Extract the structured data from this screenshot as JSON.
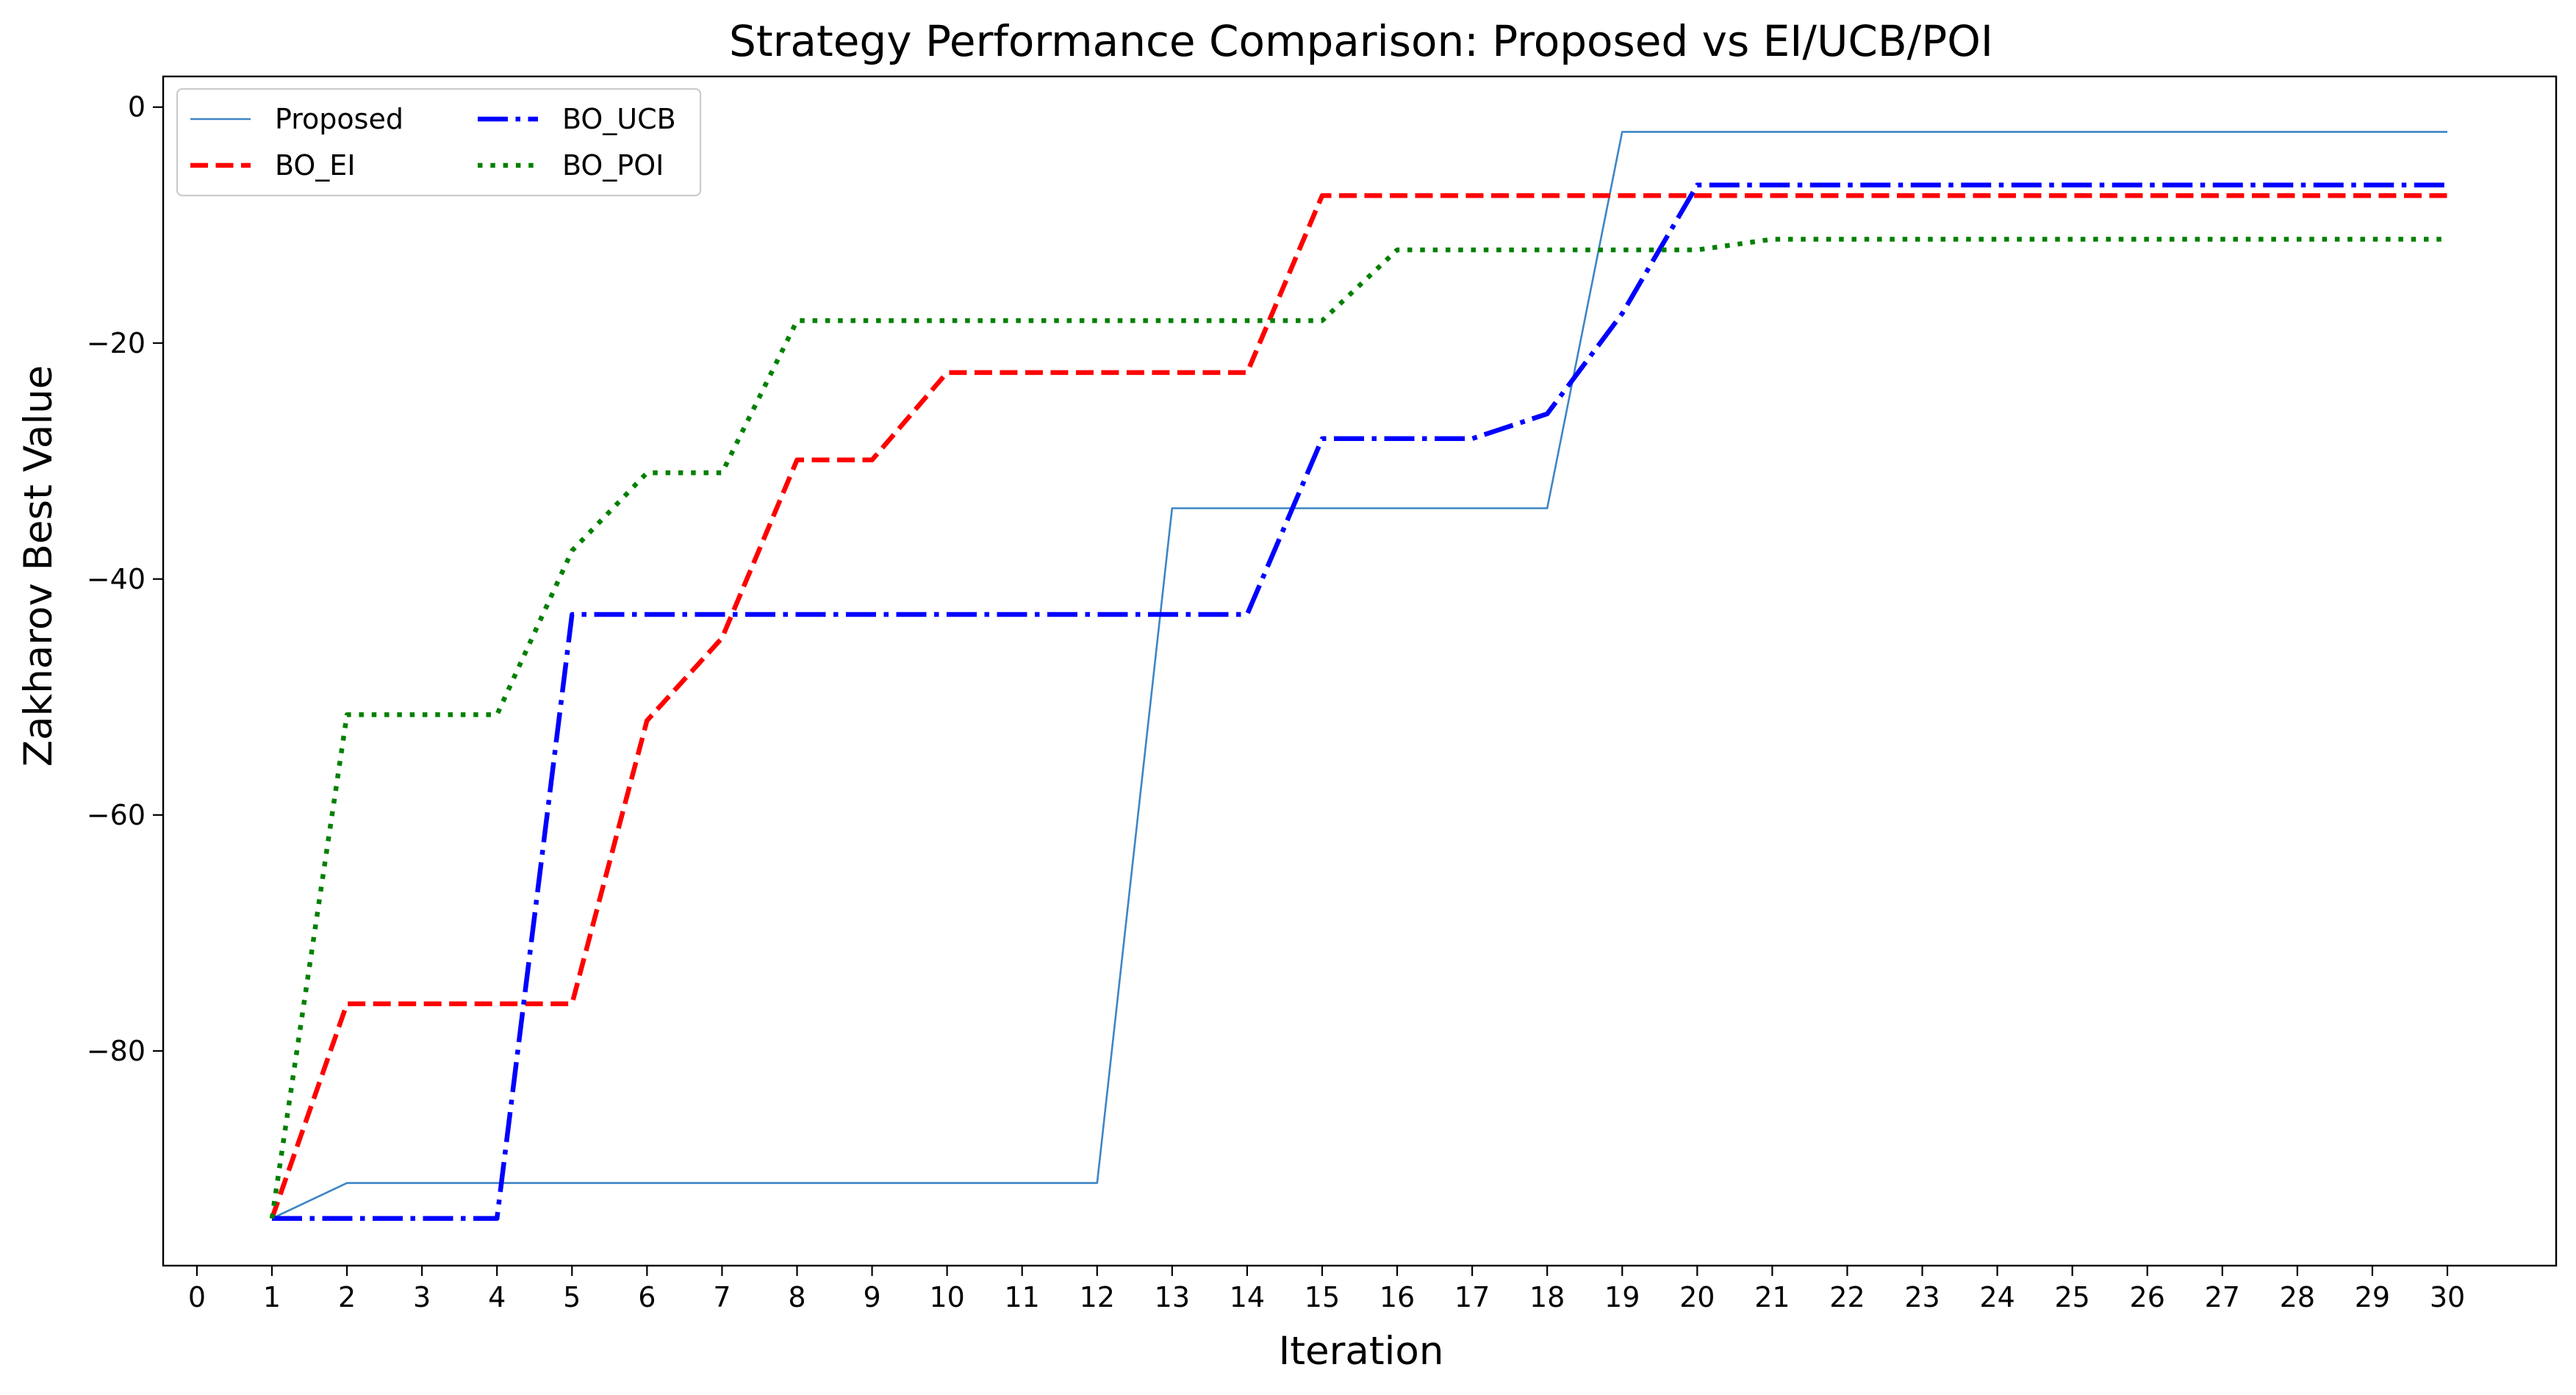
{
  "chart_data": {
    "type": "line",
    "title": "Strategy Performance Comparison: Proposed vs EI/UCB/POI",
    "xlabel": "Iteration",
    "ylabel": "Zakharov Best Value",
    "xlim": [
      -0.45,
      31.45
    ],
    "ylim": [
      -98.2,
      2.6
    ],
    "xticks": [
      0,
      1,
      2,
      3,
      4,
      5,
      6,
      7,
      8,
      9,
      10,
      11,
      12,
      13,
      14,
      15,
      16,
      17,
      18,
      19,
      20,
      21,
      22,
      23,
      24,
      25,
      26,
      27,
      28,
      29,
      30
    ],
    "yticks": [
      -80,
      -60,
      -40,
      -20,
      0
    ],
    "legend_loc": "upper-left",
    "x": [
      1,
      2,
      3,
      4,
      5,
      6,
      7,
      8,
      9,
      10,
      11,
      12,
      13,
      14,
      15,
      16,
      17,
      18,
      19,
      20,
      21,
      22,
      23,
      24,
      25,
      26,
      27,
      28,
      29,
      30
    ],
    "series": [
      {
        "name": "Proposed",
        "color": "#3d85c6",
        "style": "solid",
        "values": [
          -94.2,
          -91.2,
          -91.2,
          -91.2,
          -91.2,
          -91.2,
          -91.2,
          -91.2,
          -91.2,
          -91.2,
          -91.2,
          -91.2,
          -34.0,
          -34.0,
          -34.0,
          -34.0,
          -34.0,
          -34.0,
          -2.1,
          -2.1,
          -2.1,
          -2.1,
          -2.1,
          -2.1,
          -2.1,
          -2.1,
          -2.1,
          -2.1,
          -2.1,
          -2.1
        ]
      },
      {
        "name": "BO_EI",
        "color": "#ff0000",
        "style": "dashed",
        "values": [
          -94.2,
          -76.0,
          -76.0,
          -76.0,
          -76.0,
          -52.0,
          -45.0,
          -29.9,
          -29.9,
          -22.5,
          -22.5,
          -22.5,
          -22.5,
          -22.5,
          -7.5,
          -7.5,
          -7.5,
          -7.5,
          -7.5,
          -7.5,
          -7.5,
          -7.5,
          -7.5,
          -7.5,
          -7.5,
          -7.5,
          -7.5,
          -7.5,
          -7.5,
          -7.5
        ]
      },
      {
        "name": "BO_UCB",
        "color": "#0000ff",
        "style": "dashdot",
        "values": [
          -94.2,
          -94.2,
          -94.2,
          -94.2,
          -43.0,
          -43.0,
          -43.0,
          -43.0,
          -43.0,
          -43.0,
          -43.0,
          -43.0,
          -43.0,
          -43.0,
          -28.1,
          -28.1,
          -28.1,
          -26.0,
          -17.5,
          -6.6,
          -6.6,
          -6.6,
          -6.6,
          -6.6,
          -6.6,
          -6.6,
          -6.6,
          -6.6,
          -6.6,
          -6.6
        ]
      },
      {
        "name": "BO_POI",
        "color": "#008000",
        "style": "dotted",
        "values": [
          -94.2,
          -51.5,
          -51.5,
          -51.5,
          -37.6,
          -31.0,
          -31.0,
          -18.1,
          -18.1,
          -18.1,
          -18.1,
          -18.1,
          -18.1,
          -18.1,
          -18.1,
          -12.1,
          -12.1,
          -12.1,
          -12.1,
          -12.1,
          -11.2,
          -11.2,
          -11.2,
          -11.2,
          -11.2,
          -11.2,
          -11.2,
          -11.2,
          -11.2,
          -11.2
        ]
      }
    ]
  }
}
